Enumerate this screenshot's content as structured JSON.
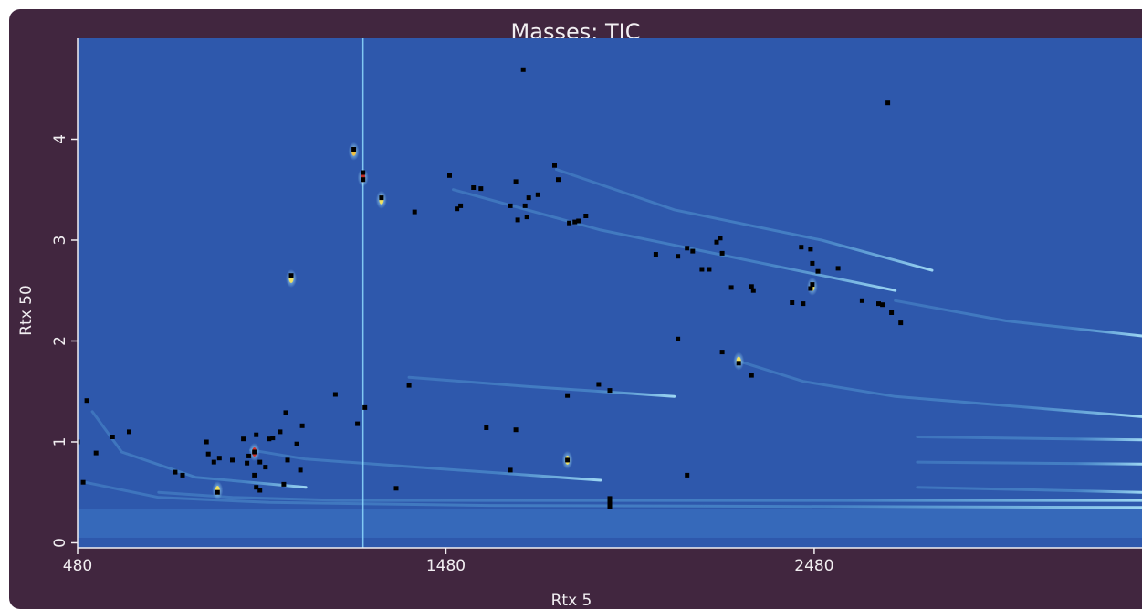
{
  "chart_data": {
    "type": "heatmap",
    "title": "Masses: TIC",
    "xlabel": "Rtx 5",
    "ylabel": "Rtx 50",
    "xlim": [
      480,
      3370
    ],
    "ylim": [
      -0.05,
      5.0
    ],
    "x_ticks": [
      480,
      1480,
      2480
    ],
    "y_ticks": [
      0,
      1,
      2,
      3,
      4
    ],
    "colors": {
      "background": "#2e58ac",
      "frame": "#41263f",
      "text": "#f1eef1",
      "marker": "#000000"
    },
    "peaks": [
      {
        "x": 1230,
        "y": 3.9
      },
      {
        "x": 1255,
        "y": 3.67
      },
      {
        "x": 1255,
        "y": 3.6
      },
      {
        "x": 1305,
        "y": 3.42
      },
      {
        "x": 1395,
        "y": 3.28
      },
      {
        "x": 1490,
        "y": 3.64
      },
      {
        "x": 1510,
        "y": 3.31
      },
      {
        "x": 1520,
        "y": 3.34
      },
      {
        "x": 1555,
        "y": 3.52
      },
      {
        "x": 1575,
        "y": 3.51
      },
      {
        "x": 1655,
        "y": 3.34
      },
      {
        "x": 1670,
        "y": 3.58
      },
      {
        "x": 1675,
        "y": 3.2
      },
      {
        "x": 1695,
        "y": 3.34
      },
      {
        "x": 1705,
        "y": 3.42
      },
      {
        "x": 1700,
        "y": 3.23
      },
      {
        "x": 1730,
        "y": 3.45
      },
      {
        "x": 1775,
        "y": 3.74
      },
      {
        "x": 1785,
        "y": 3.6
      },
      {
        "x": 1815,
        "y": 3.17
      },
      {
        "x": 1830,
        "y": 3.18
      },
      {
        "x": 1840,
        "y": 3.19
      },
      {
        "x": 1860,
        "y": 3.24
      },
      {
        "x": 1690,
        "y": 4.69
      },
      {
        "x": 1060,
        "y": 2.65
      },
      {
        "x": 1180,
        "y": 1.47
      },
      {
        "x": 1240,
        "y": 1.18
      },
      {
        "x": 1260,
        "y": 1.34
      },
      {
        "x": 1000,
        "y": 1.03
      },
      {
        "x": 1030,
        "y": 1.1
      },
      {
        "x": 1045,
        "y": 1.29
      },
      {
        "x": 1075,
        "y": 0.98
      },
      {
        "x": 1090,
        "y": 1.16
      },
      {
        "x": 1085,
        "y": 0.72
      },
      {
        "x": 1050,
        "y": 0.82
      },
      {
        "x": 1040,
        "y": 0.58
      },
      {
        "x": 960,
        "y": 0.9
      },
      {
        "x": 965,
        "y": 1.07
      },
      {
        "x": 945,
        "y": 0.86
      },
      {
        "x": 975,
        "y": 0.8
      },
      {
        "x": 940,
        "y": 0.79
      },
      {
        "x": 930,
        "y": 1.03
      },
      {
        "x": 960,
        "y": 0.67
      },
      {
        "x": 965,
        "y": 0.55
      },
      {
        "x": 975,
        "y": 0.52
      },
      {
        "x": 1010,
        "y": 1.04
      },
      {
        "x": 990,
        "y": 0.75
      },
      {
        "x": 900,
        "y": 0.82
      },
      {
        "x": 865,
        "y": 0.84
      },
      {
        "x": 850,
        "y": 0.8
      },
      {
        "x": 835,
        "y": 0.88
      },
      {
        "x": 830,
        "y": 1.0
      },
      {
        "x": 860,
        "y": 0.5
      },
      {
        "x": 745,
        "y": 0.7
      },
      {
        "x": 765,
        "y": 0.67
      },
      {
        "x": 480,
        "y": 1.0
      },
      {
        "x": 505,
        "y": 1.41
      },
      {
        "x": 530,
        "y": 0.89
      },
      {
        "x": 575,
        "y": 1.05
      },
      {
        "x": 620,
        "y": 1.1
      },
      {
        "x": 495,
        "y": 0.6
      },
      {
        "x": 1380,
        "y": 1.56
      },
      {
        "x": 1345,
        "y": 0.54
      },
      {
        "x": 1590,
        "y": 1.14
      },
      {
        "x": 1655,
        "y": 0.72
      },
      {
        "x": 1670,
        "y": 1.12
      },
      {
        "x": 1810,
        "y": 1.46
      },
      {
        "x": 1810,
        "y": 0.82
      },
      {
        "x": 1895,
        "y": 1.57
      },
      {
        "x": 1925,
        "y": 1.51
      },
      {
        "x": 1925,
        "y": 0.44
      },
      {
        "x": 1925,
        "y": 0.4
      },
      {
        "x": 1925,
        "y": 0.36
      },
      {
        "x": 2050,
        "y": 2.86
      },
      {
        "x": 2110,
        "y": 2.84
      },
      {
        "x": 2110,
        "y": 2.02
      },
      {
        "x": 2135,
        "y": 0.67
      },
      {
        "x": 2135,
        "y": 2.92
      },
      {
        "x": 2150,
        "y": 2.89
      },
      {
        "x": 2175,
        "y": 2.71
      },
      {
        "x": 2195,
        "y": 2.71
      },
      {
        "x": 2215,
        "y": 2.98
      },
      {
        "x": 2225,
        "y": 3.02
      },
      {
        "x": 2230,
        "y": 1.89
      },
      {
        "x": 2230,
        "y": 2.87
      },
      {
        "x": 2255,
        "y": 2.53
      },
      {
        "x": 2275,
        "y": 1.78
      },
      {
        "x": 2310,
        "y": 2.54
      },
      {
        "x": 2315,
        "y": 2.5
      },
      {
        "x": 2310,
        "y": 1.66
      },
      {
        "x": 2420,
        "y": 2.38
      },
      {
        "x": 2450,
        "y": 2.37
      },
      {
        "x": 2445,
        "y": 2.93
      },
      {
        "x": 2470,
        "y": 2.91
      },
      {
        "x": 2475,
        "y": 2.77
      },
      {
        "x": 2475,
        "y": 2.56
      },
      {
        "x": 2470,
        "y": 2.52
      },
      {
        "x": 2490,
        "y": 2.69
      },
      {
        "x": 2545,
        "y": 2.72
      },
      {
        "x": 2610,
        "y": 2.4
      },
      {
        "x": 2655,
        "y": 2.37
      },
      {
        "x": 2665,
        "y": 2.36
      },
      {
        "x": 2690,
        "y": 2.28
      },
      {
        "x": 2715,
        "y": 2.18
      },
      {
        "x": 2680,
        "y": 4.36
      }
    ],
    "bright_spots": [
      {
        "x": 1255,
        "y": 3.62,
        "color": "#c0302a"
      },
      {
        "x": 1230,
        "y": 3.88,
        "color": "#f0c040"
      },
      {
        "x": 1305,
        "y": 3.4,
        "color": "#f0e060"
      },
      {
        "x": 1060,
        "y": 2.62,
        "color": "#f0e060"
      },
      {
        "x": 960,
        "y": 0.9,
        "color": "#d0302a"
      },
      {
        "x": 1810,
        "y": 0.82,
        "color": "#f0e060"
      },
      {
        "x": 2275,
        "y": 1.8,
        "color": "#f0e060"
      },
      {
        "x": 2475,
        "y": 2.54,
        "color": "#f0e060"
      },
      {
        "x": 860,
        "y": 0.52,
        "color": "#f0e060"
      }
    ]
  }
}
